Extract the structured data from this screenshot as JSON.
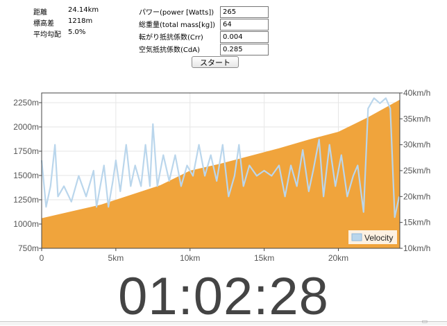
{
  "stats": [
    {
      "label": "距離",
      "value": "24.14km"
    },
    {
      "label": "標高差",
      "value": "1218m"
    },
    {
      "label": "平均勾配",
      "value": "5.0%"
    }
  ],
  "params": [
    {
      "label": "パワー(power [Watts])",
      "value": "265"
    },
    {
      "label": "総重量(total mass[kg])",
      "value": "64"
    },
    {
      "label": "転がり抵抗係数(Crr)",
      "value": "0.004"
    },
    {
      "label": "空気抵抗係数(CdA)",
      "value": "0.285"
    }
  ],
  "start_button": "スタート",
  "timer": "01:02:28",
  "chart_data": {
    "type": "area",
    "legend": {
      "label": "Velocity",
      "position": "bottom-right"
    },
    "x_ticks": [
      "0",
      "5km",
      "10km",
      "15km",
      "20km"
    ],
    "x_tick_values": [
      0,
      5,
      10,
      15,
      20
    ],
    "xlim": [
      0,
      24.14
    ],
    "y_left_ticks": [
      "750m",
      "1000m",
      "1250m",
      "1500m",
      "1750m",
      "2000m",
      "2250m"
    ],
    "y_left_values": [
      750,
      1000,
      1250,
      1500,
      1750,
      2000,
      2250
    ],
    "ylim_left": [
      750,
      2350
    ],
    "y_right_ticks": [
      "10km/h",
      "15km/h",
      "20km/h",
      "25km/h",
      "30km/h",
      "35km/h",
      "40km/h"
    ],
    "y_right_values": [
      10,
      15,
      20,
      25,
      30,
      35,
      40
    ],
    "ylim_right": [
      10,
      40
    ],
    "series": [
      {
        "values": [
          [
            0,
            1060
          ],
          [
            2,
            1130
          ],
          [
            4,
            1200
          ],
          [
            6,
            1300
          ],
          [
            8,
            1400
          ],
          [
            10,
            1550
          ],
          [
            12,
            1620
          ],
          [
            14,
            1700
          ],
          [
            16,
            1780
          ],
          [
            18,
            1870
          ],
          [
            20,
            1950
          ],
          [
            22,
            2100
          ],
          [
            24.14,
            2280
          ]
        ],
        "color": "#f0a43c"
      },
      {
        "name": "Velocity",
        "color": "#bad6ec",
        "values": [
          [
            0,
            27
          ],
          [
            0.3,
            18
          ],
          [
            0.6,
            22
          ],
          [
            0.9,
            30
          ],
          [
            1.1,
            20
          ],
          [
            1.5,
            22
          ],
          [
            2.0,
            19
          ],
          [
            2.5,
            24
          ],
          [
            3.0,
            20
          ],
          [
            3.5,
            25
          ],
          [
            3.7,
            18
          ],
          [
            4.2,
            26
          ],
          [
            4.5,
            18
          ],
          [
            4.8,
            23
          ],
          [
            5.0,
            27
          ],
          [
            5.3,
            21
          ],
          [
            5.7,
            30
          ],
          [
            6.0,
            22
          ],
          [
            6.3,
            26
          ],
          [
            6.7,
            22
          ],
          [
            7.0,
            30
          ],
          [
            7.3,
            22
          ],
          [
            7.5,
            34
          ],
          [
            7.8,
            22
          ],
          [
            8.2,
            28
          ],
          [
            8.6,
            23
          ],
          [
            9.0,
            28
          ],
          [
            9.4,
            22
          ],
          [
            9.8,
            26
          ],
          [
            10.2,
            24
          ],
          [
            10.6,
            30
          ],
          [
            11.0,
            24
          ],
          [
            11.4,
            28
          ],
          [
            11.8,
            23
          ],
          [
            12.2,
            30
          ],
          [
            12.6,
            20
          ],
          [
            13.0,
            24
          ],
          [
            13.3,
            30
          ],
          [
            13.6,
            22
          ],
          [
            14.0,
            26
          ],
          [
            14.5,
            24
          ],
          [
            15.0,
            25
          ],
          [
            15.5,
            24
          ],
          [
            16.0,
            26
          ],
          [
            16.4,
            20
          ],
          [
            16.8,
            26
          ],
          [
            17.2,
            22
          ],
          [
            17.6,
            29
          ],
          [
            18.0,
            21
          ],
          [
            18.3,
            25
          ],
          [
            18.7,
            31
          ],
          [
            19.0,
            20
          ],
          [
            19.4,
            30
          ],
          [
            19.8,
            22
          ],
          [
            20.2,
            28
          ],
          [
            20.6,
            20
          ],
          [
            21.0,
            24
          ],
          [
            21.3,
            26
          ],
          [
            21.7,
            17
          ],
          [
            22.0,
            37
          ],
          [
            22.4,
            39
          ],
          [
            22.8,
            38
          ],
          [
            23.2,
            39
          ],
          [
            23.5,
            37
          ],
          [
            23.8,
            16
          ],
          [
            24.1,
            20
          ]
        ]
      }
    ]
  }
}
